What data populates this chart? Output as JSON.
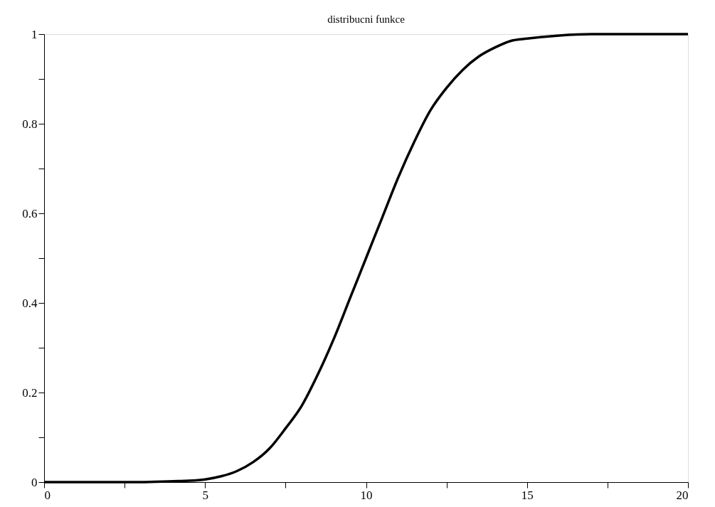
{
  "chart_data": {
    "type": "line",
    "title": "distribucni funkce",
    "x": [
      0,
      1,
      2,
      3,
      4,
      4.5,
      5,
      5.5,
      6,
      6.5,
      7,
      7.5,
      8,
      8.5,
      9,
      9.5,
      10,
      10.5,
      11,
      11.5,
      12,
      12.5,
      13,
      13.5,
      14,
      14.5,
      15,
      16,
      17,
      18,
      19,
      20
    ],
    "series": [
      {
        "color": "#000000",
        "values": [
          0,
          0,
          0,
          0,
          0.002,
          0.003,
          0.006,
          0.013,
          0.025,
          0.045,
          0.075,
          0.12,
          0.17,
          0.24,
          0.32,
          0.41,
          0.5,
          0.59,
          0.68,
          0.76,
          0.83,
          0.88,
          0.92,
          0.95,
          0.97,
          0.985,
          0.99,
          0.997,
          1,
          1,
          1,
          1
        ]
      }
    ],
    "xlim": [
      0,
      20
    ],
    "ylim": [
      0,
      1
    ],
    "xticks": [
      0,
      {
        "value": 2.5,
        "label": null
      },
      5,
      {
        "value": 7.5,
        "label": null
      },
      10,
      {
        "value": 12.5,
        "label": null
      },
      15,
      {
        "value": 17.5,
        "label": null
      },
      20
    ],
    "yticks": [
      0,
      {
        "value": 0.1,
        "label": null
      },
      0.2,
      {
        "value": 0.3,
        "label": null
      },
      0.4,
      {
        "value": 0.5,
        "label": null
      },
      0.6,
      {
        "value": 0.7,
        "label": null
      },
      0.8,
      {
        "value": 0.9,
        "label": null
      },
      1
    ],
    "grid": false,
    "marker": "none",
    "line_style": "solid"
  }
}
